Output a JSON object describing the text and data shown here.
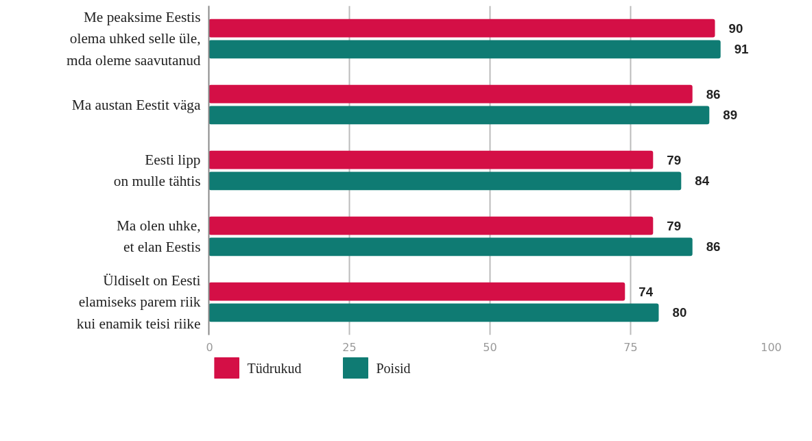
{
  "chart_data": {
    "type": "bar",
    "orientation": "horizontal",
    "categories": [
      "Me peaksime Eestis\nolema uhked selle üle,\nmda oleme saavutanud",
      "Ma austan Eestit väga",
      "Eesti lipp\non mulle tähtis",
      "Ma olen uhke,\net elan Eestis",
      "Üldiselt on Eesti\nelamiseks parem riik\nkui enamik teisi riike"
    ],
    "series": [
      {
        "name": "Tüdrukud",
        "color": "#d40f46",
        "values": [
          90,
          86,
          79,
          79,
          74
        ]
      },
      {
        "name": "Poisid",
        "color": "#0f7b73",
        "values": [
          91,
          89,
          84,
          86,
          80
        ]
      }
    ],
    "xlim": [
      0,
      100
    ],
    "xticks": [
      0,
      25,
      50,
      75,
      100
    ],
    "grid": "x",
    "legend": "bottom left",
    "data_labels": true
  }
}
